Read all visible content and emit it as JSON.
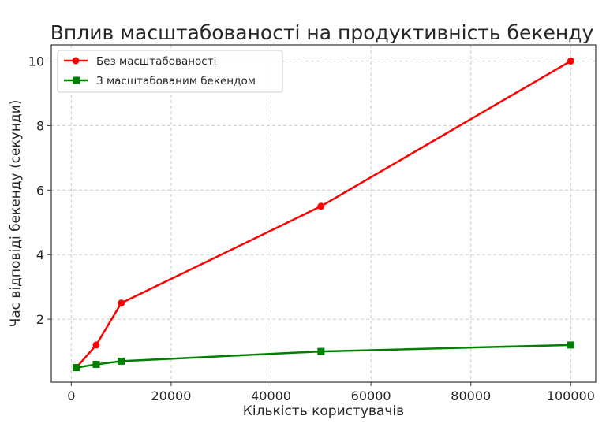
{
  "chart_data": {
    "type": "line",
    "title": "Вплив масштабованості на продуктивність бекенду",
    "xlabel": "Кількість користувачів",
    "ylabel": "Час відповіді бекенду (секунди)",
    "x": [
      1000,
      5000,
      10000,
      50000,
      100000
    ],
    "xlim": [
      -4000,
      105000
    ],
    "ylim": [
      0.05,
      10.5
    ],
    "xticks": [
      0,
      20000,
      40000,
      60000,
      80000,
      100000
    ],
    "yticks": [
      2,
      4,
      6,
      8,
      10
    ],
    "grid": true,
    "legend_position": "top-left",
    "series": [
      {
        "name": "Без масштабованості",
        "values": [
          0.5,
          1.2,
          2.5,
          5.5,
          10
        ],
        "color": "#ff0000",
        "marker": "circle"
      },
      {
        "name": "З масштабованим бекендом",
        "values": [
          0.5,
          0.6,
          0.7,
          1.0,
          1.2
        ],
        "color": "#008000",
        "marker": "square"
      }
    ]
  }
}
